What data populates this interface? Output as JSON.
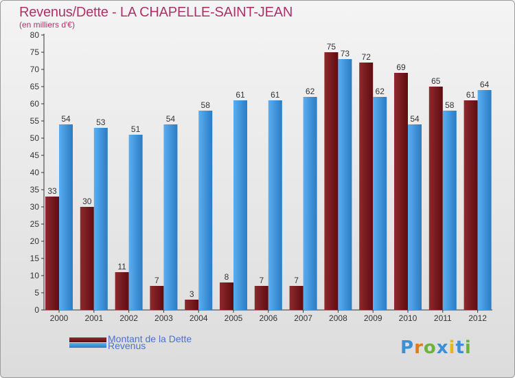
{
  "chart_data": {
    "type": "bar",
    "title": "Revenus/Dette - LA CHAPELLE-SAINT-JEAN",
    "subtitle": "(en milliers d'€)",
    "categories": [
      "2000",
      "2001",
      "2002",
      "2003",
      "2004",
      "2005",
      "2006",
      "2007",
      "2008",
      "2009",
      "2010",
      "2011",
      "2012"
    ],
    "series": [
      {
        "name": "Montant de la Dette",
        "values": [
          33,
          30,
          11,
          7,
          3,
          8,
          7,
          7,
          75,
          72,
          69,
          65,
          61
        ],
        "color": "#7a1a1e"
      },
      {
        "name": "Revenus",
        "values": [
          54,
          53,
          51,
          54,
          58,
          61,
          61,
          62,
          73,
          62,
          54,
          58,
          64
        ],
        "color": "#3a8fd6"
      }
    ],
    "ylim": [
      0,
      80
    ],
    "yticks": [
      0,
      5,
      10,
      15,
      20,
      25,
      30,
      35,
      40,
      45,
      50,
      55,
      60,
      65,
      70,
      75,
      80
    ],
    "grid": false,
    "legend_position": "bottom-left"
  },
  "branding": {
    "logo_text": "Proxiti",
    "logo_letters": [
      "P",
      "r",
      "o",
      "x",
      "i",
      "t",
      "i"
    ],
    "logo_colors": [
      "#3a8fd6",
      "#e07b1a",
      "#6bb33a",
      "#3a8fd6",
      "#e0b81a",
      "#3a8fd6",
      "#6bb33a"
    ]
  }
}
